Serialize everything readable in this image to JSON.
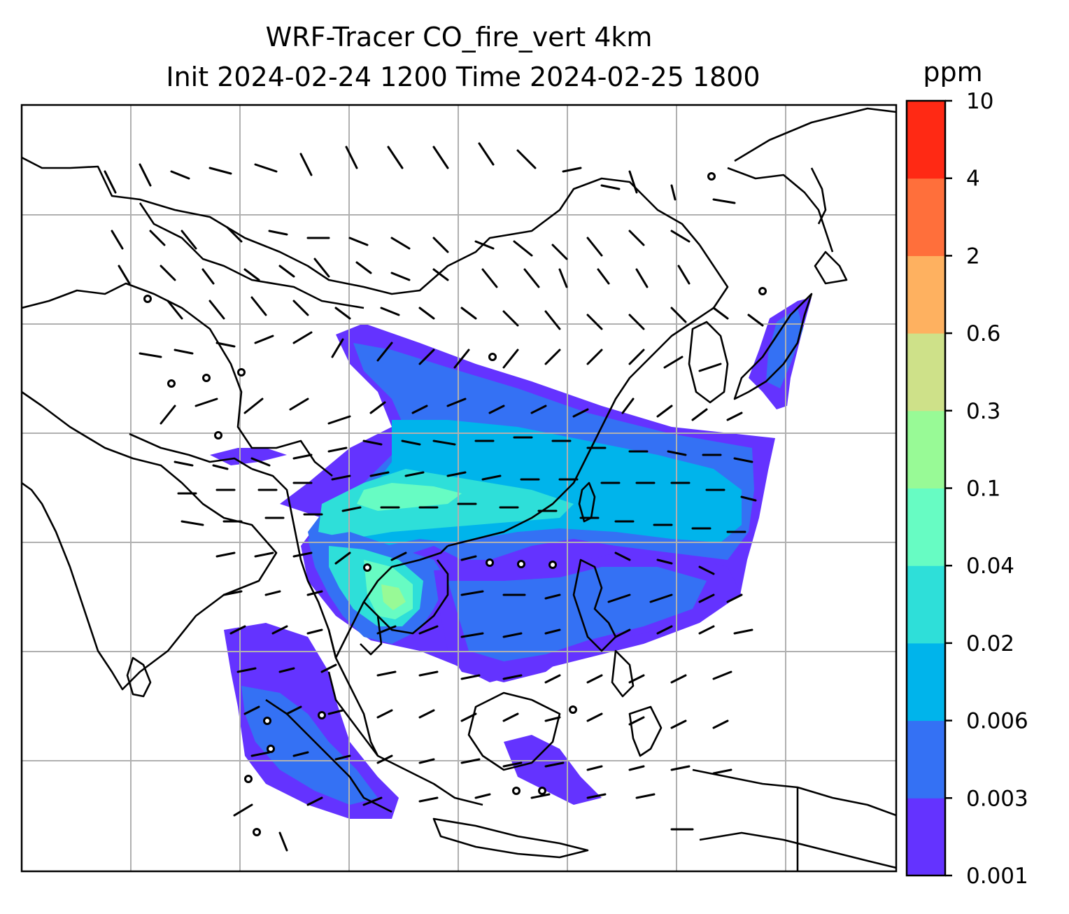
{
  "title": {
    "line1": "WRF-Tracer CO_fire_vert 4km",
    "line2": "Init 2024-02-24 1200 Time 2024-02-25 1800"
  },
  "colorbar": {
    "unit": "ppm",
    "levels": [
      "0.001",
      "0.003",
      "0.006",
      "0.02",
      "0.04",
      "0.1",
      "0.3",
      "0.6",
      "2",
      "4",
      "10"
    ],
    "colors": [
      "#6433ff",
      "#3471f4",
      "#00b4eb",
      "#2edfd9",
      "#67fcc3",
      "#98fa96",
      "#cee189",
      "#feb160",
      "#ff6f3b",
      "#ff2914"
    ]
  },
  "map": {
    "background": "#ffffff",
    "gridline_color": "#b0b0b0",
    "coastline_color": "#000000",
    "wind_barb_color": "#000000"
  }
}
